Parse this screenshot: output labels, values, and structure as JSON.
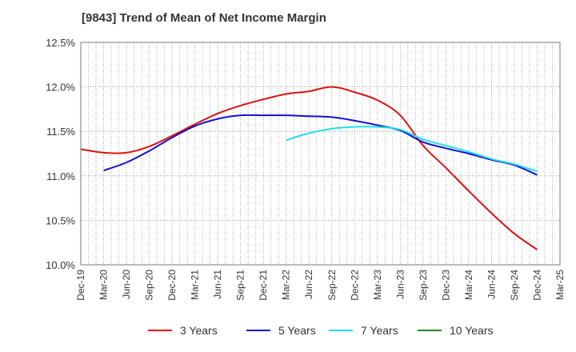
{
  "chart_data": {
    "type": "line",
    "title": "[9843]  Trend of Mean of Net Income Margin",
    "x_ticks": [
      "Dec-19",
      "Mar-20",
      "Jun-20",
      "Sep-20",
      "Dec-20",
      "Mar-21",
      "Jun-21",
      "Sep-21",
      "Dec-21",
      "Mar-22",
      "Jun-22",
      "Sep-22",
      "Dec-22",
      "Mar-23",
      "Jun-23",
      "Sep-23",
      "Dec-23",
      "Mar-24",
      "Jun-24",
      "Sep-24",
      "Dec-24",
      "Mar-25"
    ],
    "y_ticks": [
      "10.0%",
      "10.5%",
      "11.0%",
      "11.5%",
      "12.0%",
      "12.5%"
    ],
    "ylim": [
      10.0,
      12.5
    ],
    "grid": true,
    "legend_position": "bottom",
    "series": [
      {
        "name": "3 Years",
        "color": "#dd1111",
        "x": [
          "Dec-19",
          "Mar-20",
          "Jun-20",
          "Sep-20",
          "Dec-20",
          "Mar-21",
          "Jun-21",
          "Sep-21",
          "Dec-21",
          "Mar-22",
          "Jun-22",
          "Sep-22",
          "Dec-22",
          "Mar-23",
          "Jun-23",
          "Sep-23",
          "Dec-23",
          "Mar-24",
          "Jun-24",
          "Sep-24",
          "Dec-24"
        ],
        "values": [
          11.3,
          11.26,
          11.26,
          11.33,
          11.45,
          11.58,
          11.7,
          11.79,
          11.86,
          11.92,
          11.95,
          12.0,
          11.94,
          11.85,
          11.68,
          11.34,
          11.09,
          10.83,
          10.58,
          10.35,
          10.17
        ]
      },
      {
        "name": "5 Years",
        "color": "#1111cc",
        "x": [
          "Mar-20",
          "Jun-20",
          "Sep-20",
          "Dec-20",
          "Mar-21",
          "Jun-21",
          "Sep-21",
          "Dec-21",
          "Mar-22",
          "Jun-22",
          "Sep-22",
          "Dec-22",
          "Mar-23",
          "Jun-23",
          "Sep-23",
          "Dec-23",
          "Mar-24",
          "Jun-24",
          "Sep-24",
          "Dec-24"
        ],
        "values": [
          11.06,
          11.15,
          11.28,
          11.43,
          11.56,
          11.64,
          11.68,
          11.68,
          11.68,
          11.67,
          11.66,
          11.62,
          11.57,
          11.51,
          11.38,
          11.31,
          11.25,
          11.18,
          11.12,
          11.01
        ]
      },
      {
        "name": "7 Years",
        "color": "#22ddee",
        "x": [
          "Mar-22",
          "Jun-22",
          "Sep-22",
          "Dec-22",
          "Mar-23",
          "Jun-23",
          "Sep-23",
          "Dec-23",
          "Mar-24",
          "Jun-24",
          "Sep-24",
          "Dec-24"
        ],
        "values": [
          11.4,
          11.48,
          11.53,
          11.55,
          11.55,
          11.52,
          11.41,
          11.34,
          11.27,
          11.19,
          11.13,
          11.05
        ]
      },
      {
        "name": "10 Years",
        "color": "#228822",
        "x": [],
        "values": []
      }
    ]
  }
}
